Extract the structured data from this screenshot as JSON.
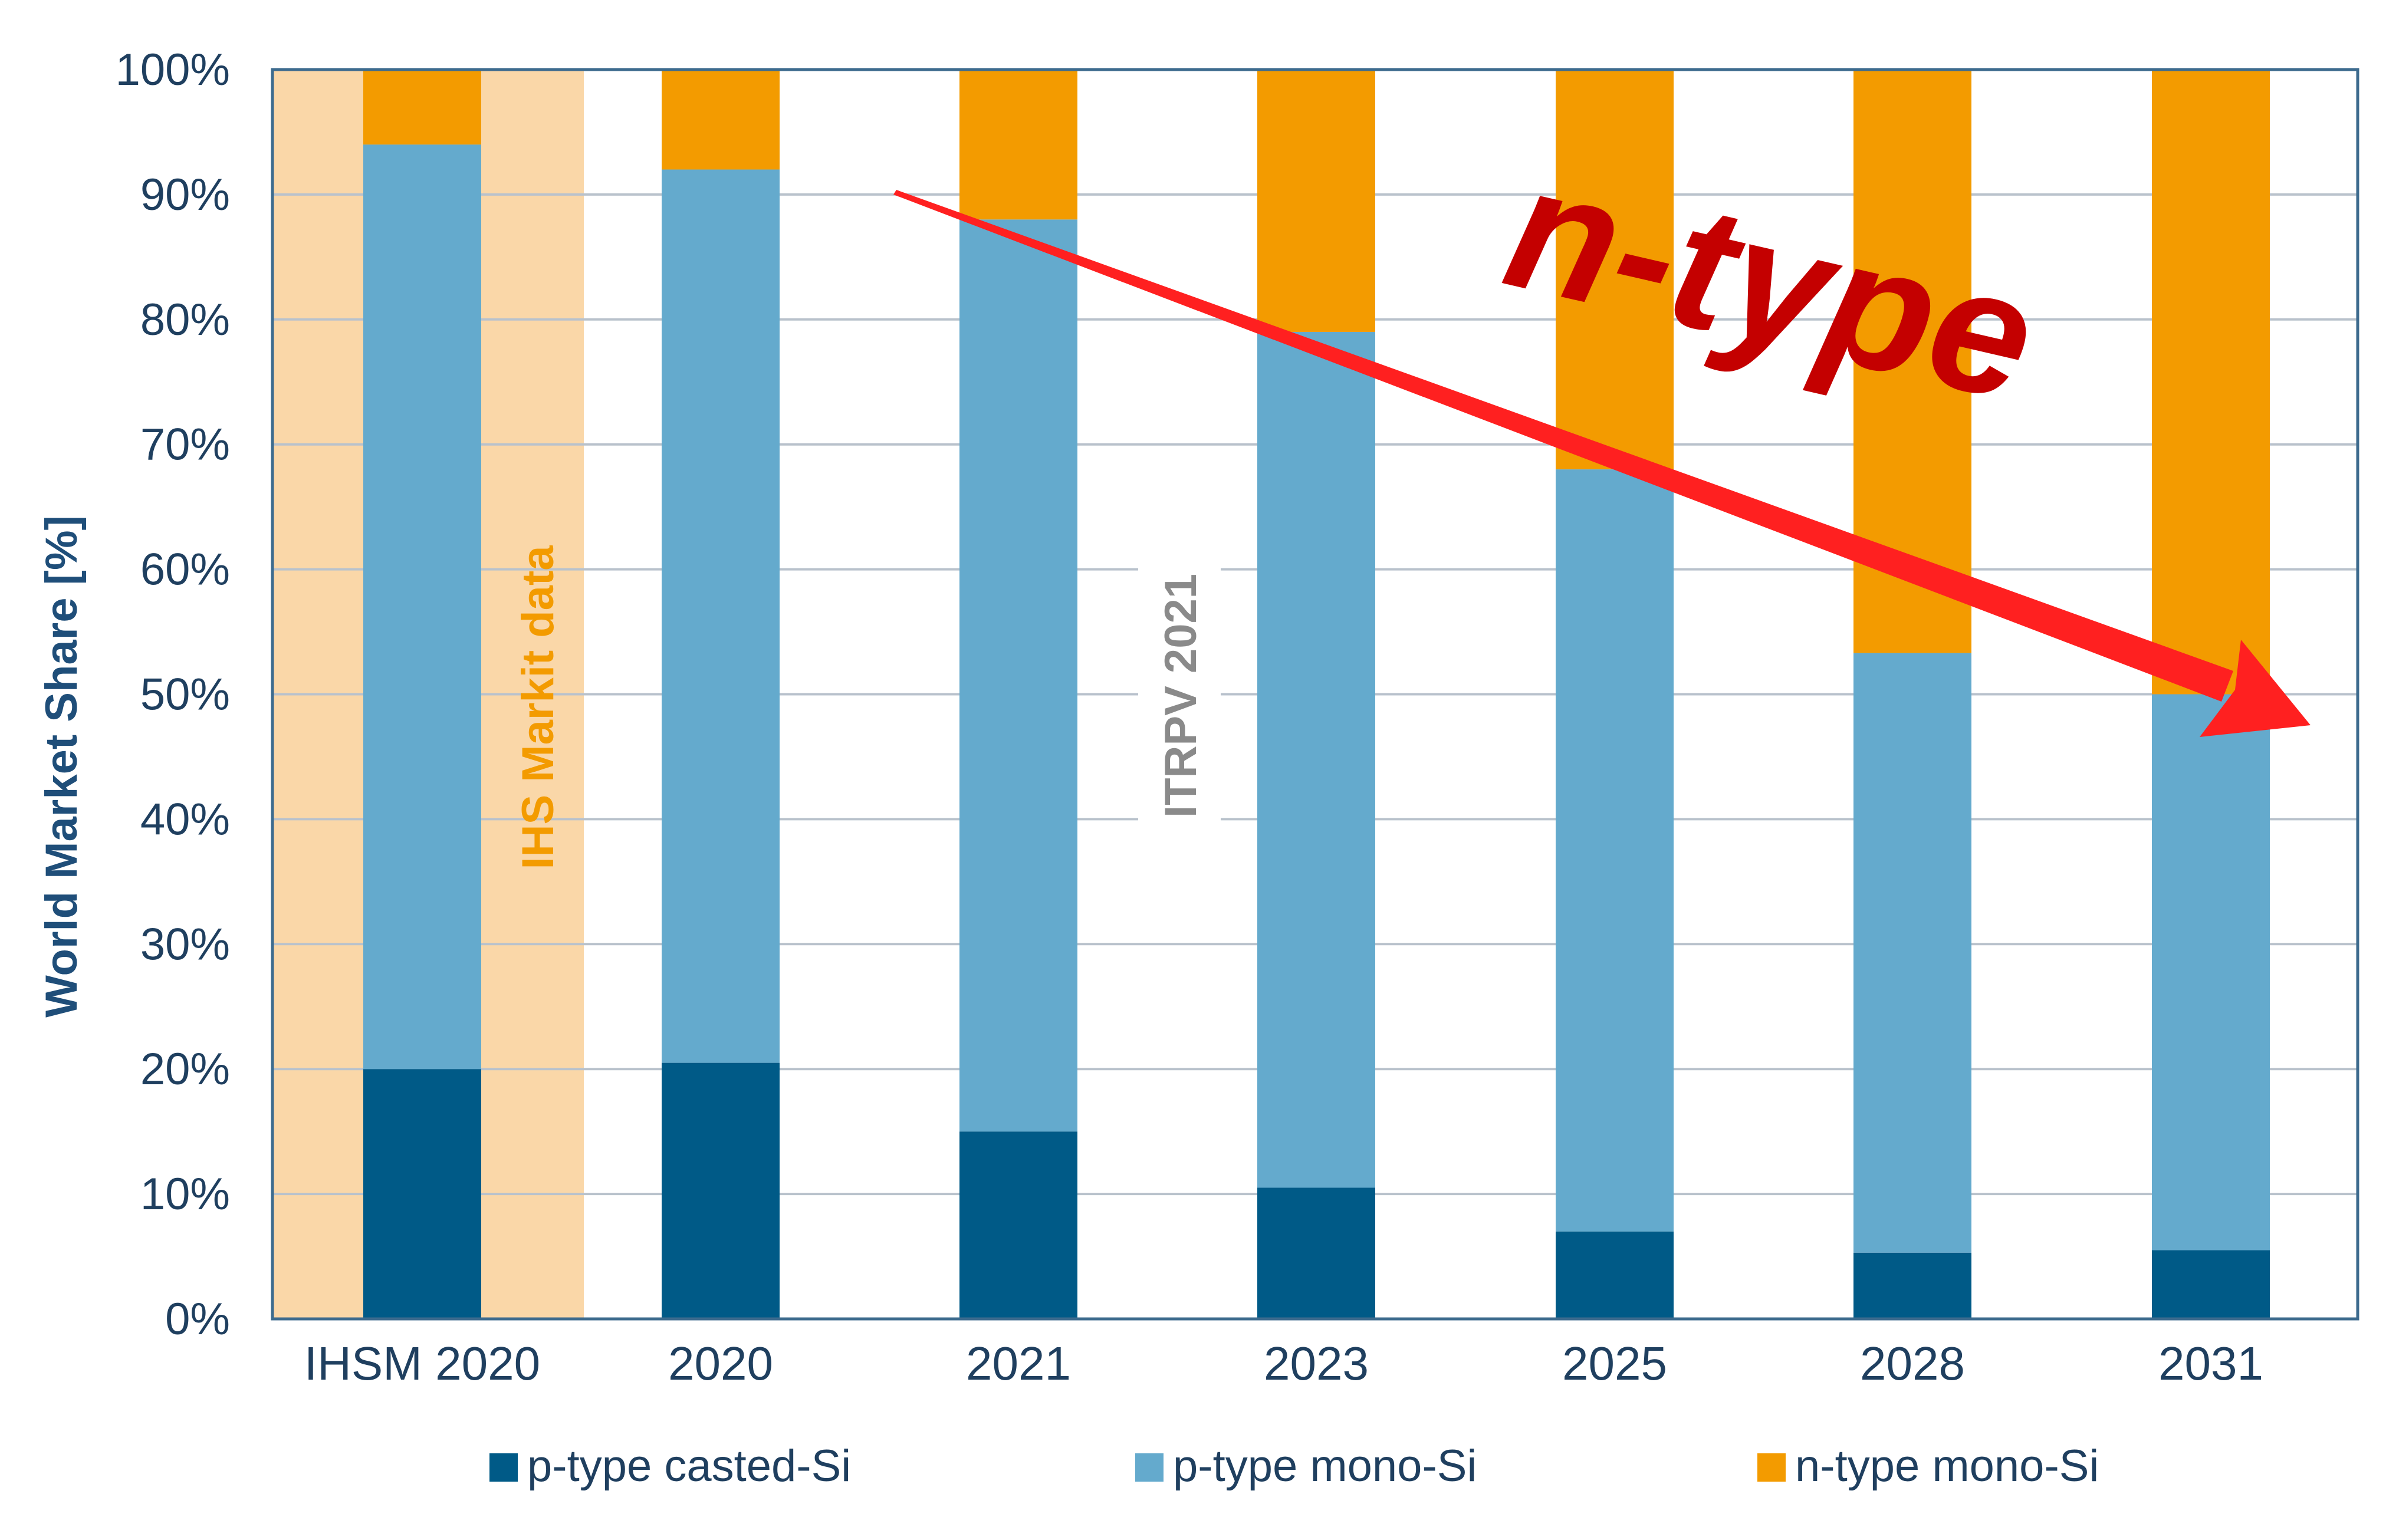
{
  "colors": {
    "p_type_casted": "#005a87",
    "p_type_mono": "#64aacd",
    "n_type_mono": "#f39b00",
    "ihs_band": "#fad7a8",
    "ihs_label": "#f39b00",
    "axis_text": "#1f3f5f",
    "ylabel_text": "#1f4e79",
    "grid": "#b9c2cc",
    "frame": "#3d6b8e",
    "itrpv_label": "#8a8a8a",
    "arrow": "#ff2020",
    "ntype_annotation": "#c40000"
  },
  "annotations": {
    "ihs_label": "IHS Markit data",
    "itrpv_label": "ITRPV 2021",
    "ntype_label": "n-type"
  },
  "chart_data": {
    "type": "bar",
    "stacked": true,
    "ylabel": "World Market Share [%]",
    "ylim": [
      0,
      100
    ],
    "yticks": [
      "0%",
      "10%",
      "20%",
      "30%",
      "40%",
      "50%",
      "60%",
      "70%",
      "80%",
      "90%",
      "100%"
    ],
    "categories": [
      "IHSM 2020",
      "2020",
      "2021",
      "2023",
      "2025",
      "2028",
      "2031"
    ],
    "series": [
      {
        "name": "p-type casted-Si",
        "color_key": "p_type_casted",
        "values": [
          20,
          20.5,
          15,
          10.5,
          7,
          5.3,
          5.5
        ]
      },
      {
        "name": "p-type mono-Si",
        "color_key": "p_type_mono",
        "values": [
          74,
          71.5,
          73,
          68.5,
          61,
          48,
          44.5
        ]
      },
      {
        "name": "n-type mono-Si",
        "color_key": "n_type_mono",
        "values": [
          6,
          8,
          12,
          21,
          32,
          46.7,
          50
        ]
      }
    ],
    "grid": true,
    "legend_position": "bottom"
  }
}
